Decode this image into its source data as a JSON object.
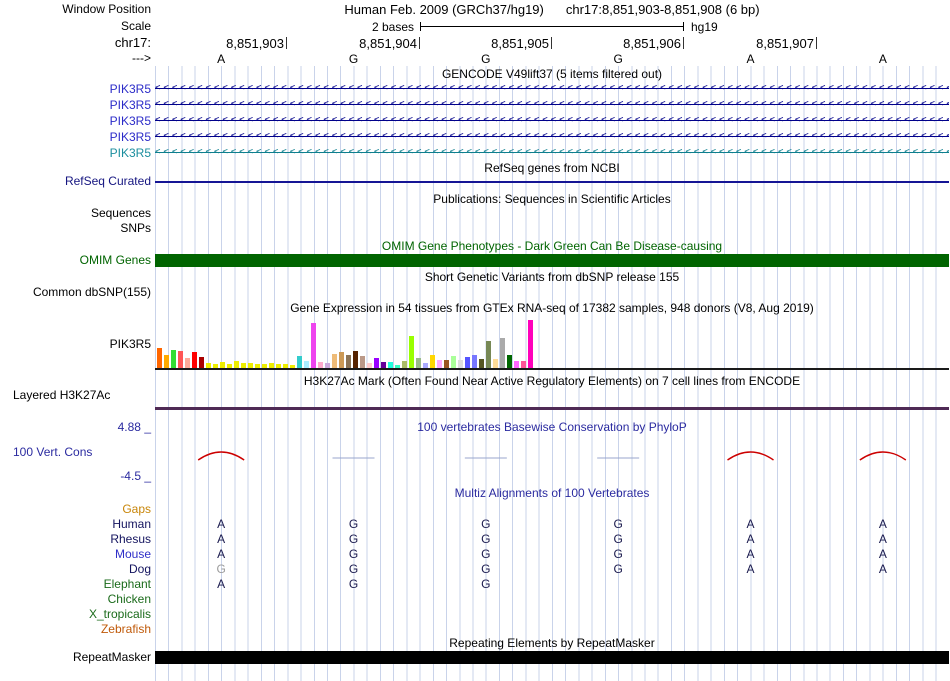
{
  "colors": {
    "guideline_blue": "#c9d3ea",
    "gencode_blue": "#00008B",
    "gencode_teal": "#0E7F8E",
    "refseq_navy": "#151595",
    "omim_green": "#006400",
    "h3k27ac_purple": "#4F2A55",
    "conservation_red": "#CC0000",
    "conservation_blue_dash": "#98A6CC",
    "label_blue": "#2B2BA0",
    "repeatmasker_black": "#000000"
  },
  "header": {
    "window_position_label": "Window Position",
    "assembly_title": "Human Feb. 2009 (GRCh37/hg19)",
    "position_title": "chr17:8,851,903-8,851,908 (6 bp)",
    "scale_label": "Scale",
    "scale_value": "2 bases",
    "scale_assembly": "hg19",
    "chrom_label": "chr17:",
    "strand_label": "--->",
    "coordinates": [
      "8,851,903",
      "8,851,904",
      "8,851,905",
      "8,851,906",
      "8,851,907"
    ],
    "bases": [
      "A",
      "G",
      "G",
      "G",
      "A",
      "A"
    ]
  },
  "gencode": {
    "title": "GENCODE V49lift37 (5 items filtered out)",
    "arrow_chevrons": "<<<<<<<<<<<<<<<<<<<<<<<<<<<<<<<<<<<<<<<<<<<<<<<<<<<<<<<<<<<<<<<<<<<<<<<<<<<<<<<<<<<<<<<<<<<<<<<<<<<<<<<<<<<<<<<<<<<<",
    "transcripts": [
      {
        "label": "PIK3R5",
        "label_color": "#2B2BC8",
        "line_color": "#00008B"
      },
      {
        "label": "PIK3R5",
        "label_color": "#2B2BC8",
        "line_color": "#00008B"
      },
      {
        "label": "PIK3R5",
        "label_color": "#2B2BC8",
        "line_color": "#00008B"
      },
      {
        "label": "PIK3R5",
        "label_color": "#2B2BC8",
        "line_color": "#00008B"
      },
      {
        "label": "PIK3R5",
        "label_color": "#1B8E9E",
        "line_color": "#0E7F8E"
      }
    ]
  },
  "refseq": {
    "title": "RefSeq genes from NCBI",
    "track_label": "RefSeq Curated",
    "label_color": "#151580",
    "line_color": "#151595"
  },
  "publications": {
    "title": "Publications: Sequences in Scientific Articles",
    "sequences_label": "Sequences",
    "snps_label": "SNPs"
  },
  "omim": {
    "title": "OMIM Gene Phenotypes - Dark Green Can Be Disease-causing",
    "track_label": "OMIM Genes",
    "color": "#006400"
  },
  "dbsnp": {
    "title": "Short Genetic Variants from dbSNP release 155",
    "track_label": "Common dbSNP(155)"
  },
  "gtex": {
    "title": "Gene Expression in 54 tissues from GTEx RNA-seq of 17382 samples, 948 donors (V8, Aug 2019)",
    "gene_label": "PIK3R5",
    "chart_data": {
      "type": "bar",
      "title": "GTEx expression of PIK3R5 (54 tissues, tissue names not shown in image)",
      "bars": [
        [
          20,
          "#FF6600"
        ],
        [
          13,
          "#FFAA00"
        ],
        [
          18,
          "#33DD33"
        ],
        [
          17,
          "#FF5555"
        ],
        [
          10,
          "#FFAA99"
        ],
        [
          16,
          "#FF0000"
        ],
        [
          11,
          "#AA0000"
        ],
        [
          5,
          "#EEEE00"
        ],
        [
          4,
          "#EEEE00"
        ],
        [
          6,
          "#EEEE00"
        ],
        [
          4,
          "#EEEE00"
        ],
        [
          7,
          "#EEEE00"
        ],
        [
          5,
          "#EEEE00"
        ],
        [
          5,
          "#EEEE00"
        ],
        [
          4,
          "#EEEE00"
        ],
        [
          4,
          "#EEEE00"
        ],
        [
          5,
          "#EEEE00"
        ],
        [
          4,
          "#EEEE00"
        ],
        [
          4,
          "#EEEE00"
        ],
        [
          3,
          "#EEEE00"
        ],
        [
          12,
          "#33CCCC"
        ],
        [
          7,
          "#AAEEFF"
        ],
        [
          45,
          "#EE44EE"
        ],
        [
          6,
          "#FFAACC"
        ],
        [
          5,
          "#CCAADD"
        ],
        [
          14,
          "#EEBB77"
        ],
        [
          16,
          "#CC9955"
        ],
        [
          13,
          "#8B7355"
        ],
        [
          17,
          "#552200"
        ],
        [
          12,
          "#BB9988"
        ],
        [
          5,
          "#FFCCCC"
        ],
        [
          10,
          "#9900FF"
        ],
        [
          6,
          "#660099"
        ],
        [
          6,
          "#22FFDD"
        ],
        [
          3,
          "#33FFC2"
        ],
        [
          7,
          "#AABB66"
        ],
        [
          32,
          "#99FF00"
        ],
        [
          10,
          "#99BB88"
        ],
        [
          5,
          "#AAAAFF"
        ],
        [
          13,
          "#FFD700"
        ],
        [
          8,
          "#FFAAFF"
        ],
        [
          8,
          "#995522"
        ],
        [
          12,
          "#AAFF99"
        ],
        [
          8,
          "#DDDDDD"
        ],
        [
          11,
          "#5555FF"
        ],
        [
          13,
          "#7777FF"
        ],
        [
          9,
          "#555522"
        ],
        [
          27,
          "#778855"
        ],
        [
          9,
          "#FFDD99"
        ],
        [
          30,
          "#AAAAAA"
        ],
        [
          13,
          "#006600"
        ],
        [
          7,
          "#FF66FF"
        ],
        [
          7,
          "#FF5599"
        ],
        [
          48,
          "#FF00BB"
        ]
      ]
    }
  },
  "encode": {
    "title": "H3K27Ac Mark (Often Found Near Active Regulatory Elements) on 7 cell lines from ENCODE",
    "track_label": "Layered H3K27Ac",
    "line_color": "#4F2A55"
  },
  "conservation": {
    "title": "100 vertebrates Basewise Conservation by PhyloP",
    "track_label": "100 Vert. Cons",
    "max_label": "4.88 _",
    "min_label": "-4.5 _",
    "marks": [
      {
        "col": 0,
        "shape": "arc",
        "color": "#CC0000"
      },
      {
        "col": 1,
        "shape": "dash",
        "color": "#98A6CC"
      },
      {
        "col": 2,
        "shape": "dash",
        "color": "#98A6CC"
      },
      {
        "col": 3,
        "shape": "dash",
        "color": "#98A6CC"
      },
      {
        "col": 4,
        "shape": "arc",
        "color": "#CC0000"
      },
      {
        "col": 5,
        "shape": "arc",
        "color": "#CC0000"
      }
    ]
  },
  "multiz": {
    "title": "Multiz Alignments of 100 Vertebrates",
    "base_color": "#1A1A4E",
    "muted_base_color": "#9C9C9C",
    "species": [
      {
        "name": "Gaps",
        "color": "#C8860A",
        "bases": [
          "",
          "",
          "",
          "",
          "",
          ""
        ]
      },
      {
        "name": "Human",
        "color": "#14145F",
        "bases": [
          "A",
          "G",
          "G",
          "G",
          "A",
          "A"
        ]
      },
      {
        "name": "Rhesus",
        "color": "#14145F",
        "bases": [
          "A",
          "G",
          "G",
          "G",
          "A",
          "A"
        ]
      },
      {
        "name": "Mouse",
        "color": "#2E2EC8",
        "bases": [
          "A",
          "G",
          "G",
          "G",
          "A",
          "A"
        ]
      },
      {
        "name": "Dog",
        "color": "#14145F",
        "bases": [
          "G",
          "G",
          "G",
          "G",
          "A",
          "A"
        ],
        "muted": [
          0
        ]
      },
      {
        "name": "Elephant",
        "color": "#1B6B1B",
        "bases": [
          "A",
          "G",
          "G",
          "",
          "",
          ""
        ]
      },
      {
        "name": "Chicken",
        "color": "#1B6B1B",
        "bases": [
          "",
          "",
          "",
          "",
          "",
          ""
        ]
      },
      {
        "name": "X_tropicalis",
        "color": "#1B6B1B",
        "bases": [
          "",
          "",
          "",
          "",
          "",
          ""
        ]
      },
      {
        "name": "Zebrafish",
        "color": "#C05A0A",
        "bases": [
          "",
          "",
          "",
          "",
          "",
          ""
        ]
      }
    ]
  },
  "repeatmasker": {
    "title": "Repeating Elements by RepeatMasker",
    "track_label": "RepeatMasker",
    "color": "#000000"
  }
}
